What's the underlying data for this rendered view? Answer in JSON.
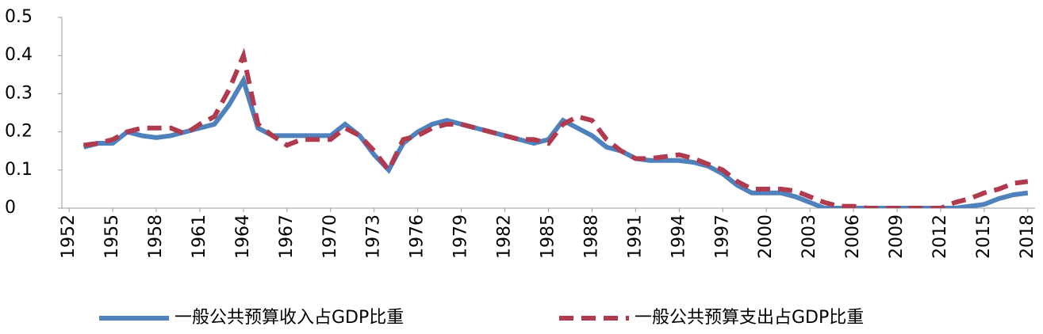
{
  "chart_data": {
    "type": "line",
    "x": [
      1953,
      1954,
      1955,
      1956,
      1957,
      1958,
      1959,
      1960,
      1961,
      1962,
      1963,
      1964,
      1965,
      1966,
      1967,
      1968,
      1969,
      1970,
      1971,
      1972,
      1973,
      1974,
      1975,
      1976,
      1977,
      1978,
      1979,
      1980,
      1981,
      1982,
      1983,
      1984,
      1985,
      1986,
      1987,
      1988,
      1989,
      1990,
      1991,
      1992,
      1993,
      1994,
      1995,
      1996,
      1997,
      1998,
      1999,
      2000,
      2001,
      2002,
      2003,
      2004,
      2005,
      2006,
      2007,
      2008,
      2009,
      2010,
      2011,
      2012,
      2013,
      2014,
      2015,
      2016,
      2017,
      2018
    ],
    "series": [
      {
        "name": "一般公共预算收入占GDP比重",
        "color": "#4f81bd",
        "dash": false,
        "values": [
          0.16,
          0.17,
          0.17,
          0.2,
          0.19,
          0.185,
          0.19,
          0.2,
          0.21,
          0.22,
          0.27,
          0.335,
          0.21,
          0.19,
          0.19,
          0.19,
          0.19,
          0.19,
          0.22,
          0.19,
          0.14,
          0.1,
          0.17,
          0.2,
          0.22,
          0.23,
          0.22,
          0.21,
          0.2,
          0.19,
          0.18,
          0.17,
          0.18,
          0.23,
          0.21,
          0.19,
          0.16,
          0.15,
          0.13,
          0.125,
          0.125,
          0.125,
          0.12,
          0.11,
          0.09,
          0.06,
          0.04,
          0.04,
          0.04,
          0.03,
          0.015,
          0,
          0,
          0,
          0,
          0,
          0,
          0,
          0,
          0,
          0,
          0.005,
          0.01,
          0.025,
          0.035,
          0.04
        ]
      },
      {
        "name": "一般公共预算支出占GDP比重",
        "color": "#b03a4e",
        "dash": true,
        "values": [
          0.165,
          0.17,
          0.18,
          0.2,
          0.21,
          0.21,
          0.21,
          0.195,
          0.22,
          0.24,
          0.31,
          0.4,
          0.22,
          0.19,
          0.165,
          0.18,
          0.18,
          0.18,
          0.21,
          0.19,
          0.15,
          0.1,
          0.18,
          0.19,
          0.21,
          0.22,
          0.22,
          0.21,
          0.2,
          0.19,
          0.18,
          0.18,
          0.17,
          0.22,
          0.24,
          0.23,
          0.18,
          0.15,
          0.13,
          0.13,
          0.135,
          0.14,
          0.13,
          0.115,
          0.1,
          0.07,
          0.05,
          0.05,
          0.05,
          0.045,
          0.03,
          0.015,
          0.005,
          0.005,
          0,
          0,
          0,
          0,
          0,
          0,
          0.015,
          0.025,
          0.04,
          0.05,
          0.065,
          0.07
        ]
      }
    ],
    "xlim": [
      1951.5,
      2018.5
    ],
    "xticks": [
      1952,
      1955,
      1958,
      1961,
      1964,
      1967,
      1970,
      1973,
      1976,
      1979,
      1982,
      1985,
      1988,
      1991,
      1994,
      1997,
      2000,
      2003,
      2006,
      2009,
      2012,
      2015,
      2018
    ],
    "ylim": [
      0,
      0.5
    ],
    "yticks": [
      0,
      0.1,
      0.2,
      0.3,
      0.4,
      0.5
    ]
  }
}
